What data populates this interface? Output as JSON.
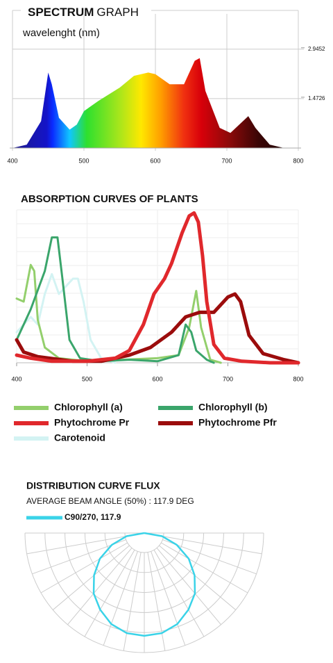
{
  "chart_data": [
    {
      "type": "area",
      "title": "SPECTRUM",
      "title_suffix": "GRAPH",
      "xlabel": "wavelenght (nm)",
      "x": [
        400,
        420,
        440,
        450,
        455,
        465,
        480,
        490,
        500,
        520,
        550,
        570,
        590,
        600,
        620,
        640,
        655,
        662,
        670,
        690,
        705,
        720,
        730,
        740,
        760,
        780,
        800
      ],
      "values": [
        0,
        0.1,
        0.8,
        2.25,
        1.9,
        0.9,
        0.55,
        0.7,
        1.1,
        1.4,
        1.8,
        2.15,
        2.25,
        2.2,
        1.9,
        1.9,
        2.6,
        2.68,
        1.7,
        0.6,
        0.45,
        0.75,
        0.95,
        0.6,
        0.1,
        0,
        0
      ],
      "xlim": [
        400,
        800
      ],
      "xticks": [
        400,
        500,
        600,
        700,
        800
      ],
      "ylim": [
        0,
        4.1
      ],
      "yticks": [
        1.4726,
        2.9452
      ]
    },
    {
      "type": "line",
      "title": "ABSORPTION CURVES OF PLANTS",
      "xlim": [
        400,
        800
      ],
      "xticks": [
        400,
        500,
        600,
        700,
        800
      ],
      "ylim": [
        0,
        100
      ],
      "grid": true,
      "series": [
        {
          "name": "Chlorophyll (a)",
          "color": "#93cf6c",
          "width": 3,
          "x": [
            400,
            410,
            420,
            425,
            430,
            440,
            460,
            500,
            550,
            600,
            630,
            645,
            655,
            662,
            675,
            690
          ],
          "values": [
            42,
            40,
            64,
            60,
            28,
            10,
            3,
            1,
            2,
            3,
            5,
            23,
            47,
            23,
            2,
            0
          ]
        },
        {
          "name": "Chlorophyll (b)",
          "color": "#3aa56b",
          "width": 3,
          "x": [
            400,
            420,
            440,
            450,
            458,
            465,
            475,
            490,
            520,
            560,
            600,
            630,
            640,
            648,
            655,
            670,
            680
          ],
          "values": [
            15,
            35,
            60,
            82,
            82,
            55,
            15,
            3,
            1,
            2,
            1,
            5,
            25,
            20,
            8,
            2,
            0
          ]
        },
        {
          "name": "Phytochrome Pr",
          "color": "#e0282c",
          "width": 5,
          "x": [
            400,
            420,
            450,
            500,
            540,
            560,
            580,
            595,
            610,
            620,
            635,
            645,
            652,
            658,
            664,
            670,
            680,
            695,
            720,
            760,
            800
          ],
          "values": [
            5,
            3,
            1,
            1,
            3,
            8,
            25,
            45,
            55,
            65,
            85,
            96,
            98,
            92,
            70,
            40,
            12,
            3,
            1,
            0,
            0
          ]
        },
        {
          "name": "Phytochrome Pfr",
          "color": "#9b0c0c",
          "width": 5,
          "x": [
            400,
            410,
            430,
            480,
            520,
            560,
            590,
            620,
            640,
            660,
            680,
            690,
            700,
            710,
            718,
            730,
            750,
            780,
            800
          ],
          "values": [
            15,
            7,
            4,
            1,
            1,
            5,
            10,
            20,
            30,
            33,
            33,
            38,
            43,
            45,
            40,
            18,
            6,
            2,
            0
          ]
        },
        {
          "name": "Carotenoid",
          "color": "#d3f3f3",
          "width": 3,
          "x": [
            400,
            420,
            430,
            440,
            450,
            460,
            470,
            480,
            487,
            495,
            505,
            520,
            540
          ],
          "values": [
            20,
            30,
            25,
            45,
            58,
            45,
            50,
            55,
            55,
            40,
            15,
            3,
            0
          ]
        }
      ]
    },
    {
      "type": "polar",
      "title": "DISTRIBUTION CURVE FLUX",
      "subtitle": "AVERAGE BEAM ANGLE  (50%) : 117.9 DEG",
      "rlim": [
        0,
        100
      ],
      "angles": [
        -90,
        -80,
        -70,
        -60,
        -50,
        -40,
        -30,
        -20,
        -10,
        0,
        10,
        20,
        30,
        40,
        50,
        60,
        70,
        80,
        90
      ],
      "series": [
        {
          "name": "C90/270, 117.9",
          "color": "#3ad3e8",
          "values": [
            0,
            15,
            29,
            43,
            55,
            66,
            74,
            81,
            85,
            86,
            85,
            81,
            74,
            66,
            55,
            43,
            29,
            15,
            0
          ]
        }
      ]
    }
  ]
}
